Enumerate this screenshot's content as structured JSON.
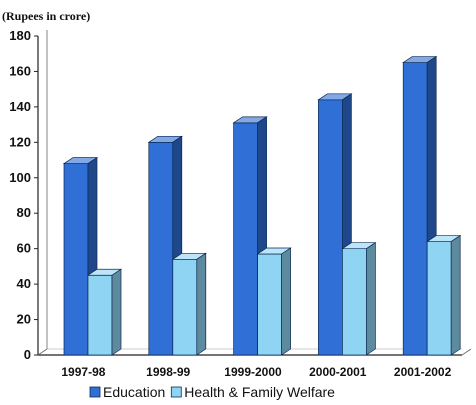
{
  "chart_data": {
    "type": "bar",
    "unit_label": "(Rupees in crore)",
    "categories": [
      "1997-98",
      "1998-99",
      "1999-2000",
      "2000-2001",
      "2001-2002"
    ],
    "series": [
      {
        "name": "Education",
        "values": [
          108,
          120,
          131,
          144,
          165
        ],
        "color": "#2f6fd6"
      },
      {
        "name": "Health & Family Welfare",
        "values": [
          45,
          54,
          57,
          60,
          64
        ],
        "color": "#8fd4f2"
      }
    ],
    "ylim": [
      0,
      180
    ],
    "yticks": [
      0,
      20,
      40,
      60,
      80,
      100,
      120,
      140,
      160,
      180
    ],
    "grid": false,
    "legend": "bottom",
    "bar_style": "3d"
  }
}
